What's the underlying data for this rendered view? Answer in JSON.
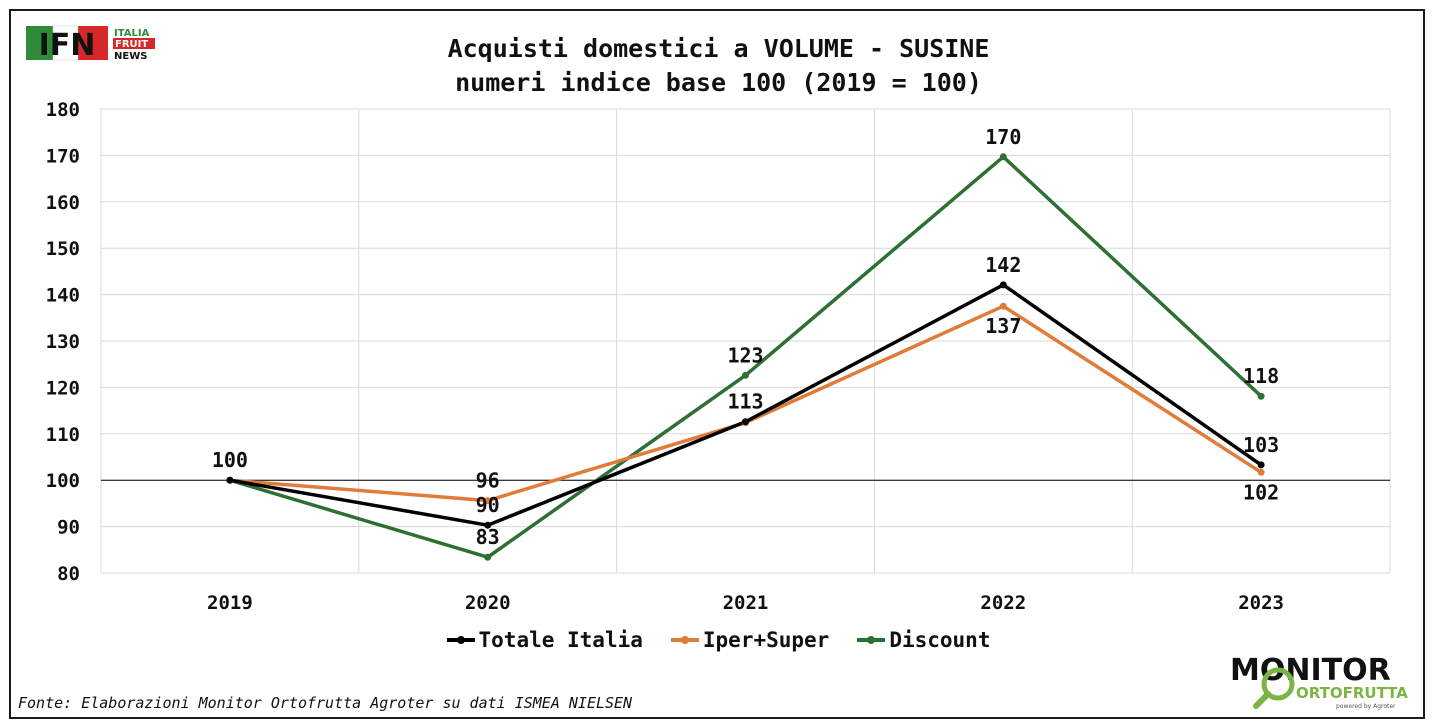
{
  "title_line1": "Acquisti domestici a VOLUME - SUSINE",
  "title_line2": "numeri indice base 100 (2019 = 100)",
  "source": "Fonte: Elaborazioni Monitor Ortofrutta Agroter su dati ISMEA NIELSEN",
  "logos": {
    "ifn": {
      "letters": "IFN",
      "line1": "ITALIA",
      "line2": "FRUIT",
      "line3": "NEWS"
    },
    "monitor": {
      "line1": "MONITOR",
      "line2": "ORTOFRUTTA",
      "tagline": "powered by Agroter"
    }
  },
  "chart_data": {
    "type": "line",
    "categories": [
      "2019",
      "2020",
      "2021",
      "2022",
      "2023"
    ],
    "ylim": [
      80,
      180
    ],
    "yticks": [
      80,
      90,
      100,
      110,
      120,
      130,
      140,
      150,
      160,
      170,
      180
    ],
    "reference_line": 100,
    "grid": true,
    "legend_position": "bottom",
    "series": [
      {
        "name": "Totale Italia",
        "color": "#000000",
        "values": [
          100,
          90.3,
          112.6,
          142.1,
          103.3
        ],
        "labels": [
          "100",
          "90",
          "113",
          "142",
          "103"
        ],
        "label_pos": [
          "above",
          "above",
          "above",
          "above",
          "above"
        ]
      },
      {
        "name": "Iper+Super",
        "color": "#E07B39",
        "values": [
          100,
          95.6,
          112.4,
          137.5,
          101.7
        ],
        "labels": [
          "",
          "96",
          "",
          "137",
          "102"
        ],
        "label_pos": [
          "above",
          "above",
          "above",
          "below",
          "below"
        ]
      },
      {
        "name": "Discount",
        "color": "#2E7033",
        "values": [
          100,
          83.4,
          122.6,
          169.7,
          118.1
        ],
        "labels": [
          "",
          "83",
          "123",
          "170",
          "118"
        ],
        "label_pos": [
          "above",
          "above",
          "above",
          "above",
          "above"
        ]
      }
    ]
  }
}
